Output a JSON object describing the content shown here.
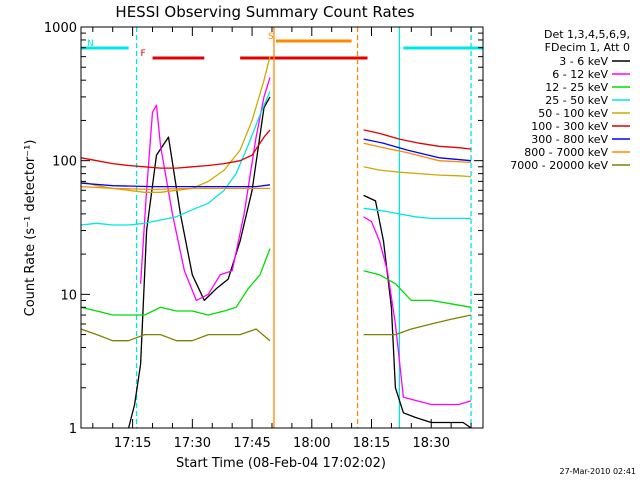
{
  "chart_data": {
    "type": "line",
    "title": "HESSI Observing Summary Count Rates",
    "xlabel": "Start Time (08-Feb-04 17:02:02)",
    "ylabel": "Count Rate (s⁻¹ detector⁻¹)",
    "y_scale": "log",
    "ylim": [
      1,
      1000
    ],
    "xlim": [
      "17:02:02",
      "18:43:00"
    ],
    "x_ticks": [
      "17:15",
      "17:30",
      "17:45",
      "18:00",
      "18:15",
      "18:30"
    ],
    "y_ticks": [
      "1",
      "10",
      "100",
      "1000"
    ],
    "legend_header": [
      "Det 1,3,4,5,6,9,",
      "FDecim 1, Att 0"
    ],
    "footer_date": "27-Mar-2010 02:41",
    "flags": {
      "N": {
        "label": "N",
        "color": "#00e5e5",
        "segments": [
          [
            "17:02:02",
            "17:14:00"
          ],
          [
            "18:23:00",
            "18:43:00"
          ]
        ]
      },
      "F": {
        "label": "F",
        "color": "#e00000",
        "segments": [
          [
            "17:20:00",
            "17:33:00"
          ],
          [
            "17:42:00",
            "18:14:00"
          ]
        ]
      },
      "S": {
        "label": "S",
        "color": "#ff8800",
        "segments": [
          [
            "17:51:00",
            "18:10:00"
          ]
        ]
      }
    },
    "markers": [
      {
        "time": "17:16:00",
        "color": "#00e5e5",
        "style": "dashed"
      },
      {
        "time": "17:50:30",
        "color": "#ff8800",
        "style": "solid"
      },
      {
        "time": "18:11:30",
        "color": "#ff8800",
        "style": "dashed"
      },
      {
        "time": "18:22:00",
        "color": "#00e5e5",
        "style": "solid"
      },
      {
        "time": "18:40:00",
        "color": "#00e5e5",
        "style": "dashed"
      }
    ],
    "series": [
      {
        "name": "3 - 6 keV",
        "color": "#000000",
        "segments": [
          {
            "t": [
              "17:14:00",
              "17:15:30",
              "17:17:00",
              "17:18:30",
              "17:21:00",
              "17:24:00",
              "17:27:00",
              "17:30:00",
              "17:33:00",
              "17:36:00",
              "17:39:00",
              "17:42:00",
              "17:45:00",
              "17:48:00",
              "17:49:30"
            ],
            "v": [
              1,
              1.5,
              3,
              30,
              110,
              150,
              40,
              14,
              9,
              11,
              13,
              25,
              60,
              250,
              300
            ]
          },
          {
            "t": [
              "18:13:00",
              "18:16:00",
              "18:18:00",
              "18:20:00",
              "18:21:00",
              "18:23:00",
              "18:26:00",
              "18:30:00",
              "18:34:00",
              "18:38:00",
              "18:40:00"
            ],
            "v": [
              55,
              50,
              25,
              8,
              2,
              1.3,
              1.2,
              1.1,
              1.1,
              1.1,
              1
            ]
          }
        ]
      },
      {
        "name": "6 - 12 keV",
        "color": "#ff00ff",
        "segments": [
          {
            "t": [
              "17:17:00",
              "17:18:30",
              "17:20:00",
              "17:21:00",
              "17:22:00",
              "17:25:00",
              "17:28:00",
              "17:31:00",
              "17:34:00",
              "17:37:00",
              "17:40:00",
              "17:43:00",
              "17:46:00",
              "17:48:00",
              "17:49:30"
            ],
            "v": [
              12,
              60,
              230,
              260,
              130,
              40,
              15,
              9,
              10,
              14,
              15,
              40,
              150,
              300,
              420
            ]
          },
          {
            "t": [
              "18:13:00",
              "18:15:00",
              "18:17:00",
              "18:19:00",
              "18:21:00",
              "18:23:00",
              "18:30:00",
              "18:37:00",
              "18:40:00"
            ],
            "v": [
              38,
              35,
              25,
              15,
              6,
              1.7,
              1.5,
              1.5,
              1.6
            ]
          }
        ]
      },
      {
        "name": "12 - 25 keV",
        "color": "#00dd00",
        "segments": [
          {
            "t": [
              "17:02:02",
              "17:06:00",
              "17:10:00",
              "17:14:00",
              "17:18:00",
              "17:22:00",
              "17:26:00",
              "17:30:00",
              "17:34:00",
              "17:38:00",
              "17:41:00",
              "17:44:00",
              "17:47:00",
              "17:49:30"
            ],
            "v": [
              8,
              7.5,
              7,
              7,
              7,
              8,
              7.5,
              7.5,
              7,
              7.5,
              8,
              11,
              14,
              22
            ]
          },
          {
            "t": [
              "18:13:00",
              "18:17:00",
              "18:21:00",
              "18:25:00",
              "18:30:00",
              "18:35:00",
              "18:40:00"
            ],
            "v": [
              15,
              14,
              12,
              9,
              9,
              8.5,
              8
            ]
          }
        ]
      },
      {
        "name": "25 - 50 keV",
        "color": "#00e5e5",
        "segments": [
          {
            "t": [
              "17:02:02",
              "17:06:00",
              "17:10:00",
              "17:14:00",
              "17:18:00",
              "17:22:00",
              "17:26:00",
              "17:30:00",
              "17:34:00",
              "17:38:00",
              "17:41:00",
              "17:44:00",
              "17:47:00",
              "17:49:30"
            ],
            "v": [
              33,
              34,
              33,
              33,
              34,
              36,
              38,
              43,
              48,
              60,
              80,
              130,
              220,
              330
            ]
          },
          {
            "t": [
              "18:13:00",
              "18:18:00",
              "18:22:00",
              "18:26:00",
              "18:30:00",
              "18:35:00",
              "18:40:00"
            ],
            "v": [
              44,
              42,
              40,
              38,
              37,
              37,
              37
            ]
          }
        ]
      },
      {
        "name": "50 - 100 keV",
        "color": "#ccaa00",
        "segments": [
          {
            "t": [
              "17:02:02",
              "17:06:00",
              "17:10:00",
              "17:14:00",
              "17:18:00",
              "17:22:00",
              "17:26:00",
              "17:30:00",
              "17:34:00",
              "17:38:00",
              "17:42:00",
              "17:45:00",
              "17:48:00",
              "17:49:30"
            ],
            "v": [
              70,
              65,
              62,
              60,
              58,
              58,
              60,
              62,
              70,
              85,
              120,
              200,
              400,
              600
            ]
          },
          {
            "t": [
              "18:13:00",
              "18:17:00",
              "18:22:00",
              "18:27:00",
              "18:32:00",
              "18:37:00",
              "18:40:00"
            ],
            "v": [
              90,
              85,
              82,
              80,
              78,
              77,
              76
            ]
          }
        ]
      },
      {
        "name": "100 - 300 keV",
        "color": "#e00000",
        "segments": [
          {
            "t": [
              "17:02:02",
              "17:06:00",
              "17:10:00",
              "17:14:00",
              "17:18:00",
              "17:22:00",
              "17:26:00",
              "17:30:00",
              "17:34:00",
              "17:38:00",
              "17:42:00",
              "17:45:00",
              "17:48:00",
              "17:49:30"
            ],
            "v": [
              105,
              100,
              95,
              92,
              90,
              88,
              88,
              90,
              92,
              95,
              100,
              110,
              150,
              170
            ]
          },
          {
            "t": [
              "18:13:00",
              "18:17:00",
              "18:22:00",
              "18:27:00",
              "18:32:00",
              "18:37:00",
              "18:40:00"
            ],
            "v": [
              170,
              160,
              145,
              135,
              128,
              125,
              122
            ]
          }
        ]
      },
      {
        "name": "300 - 800 keV",
        "color": "#0000ff",
        "segments": [
          {
            "t": [
              "17:02:02",
              "17:10:00",
              "17:20:00",
              "17:30:00",
              "17:40:00",
              "17:46:00",
              "17:49:30"
            ],
            "v": [
              68,
              65,
              64,
              64,
              64,
              64,
              66
            ]
          },
          {
            "t": [
              "18:13:00",
              "18:18:00",
              "18:24:00",
              "18:32:00",
              "18:40:00"
            ],
            "v": [
              145,
              135,
              120,
              105,
              100
            ]
          }
        ]
      },
      {
        "name": "800 - 7000 keV",
        "color": "#ff8800",
        "segments": [
          {
            "t": [
              "17:02:02",
              "17:10:00",
              "17:20:00",
              "17:30:00",
              "17:40:00",
              "17:46:00",
              "17:49:30"
            ],
            "v": [
              64,
              62,
              61,
              62,
              62,
              62,
              62
            ]
          },
          {
            "t": [
              "18:13:00",
              "18:18:00",
              "18:24:00",
              "18:32:00",
              "18:40:00"
            ],
            "v": [
              135,
              125,
              115,
              100,
              97
            ]
          }
        ]
      },
      {
        "name": "7000 - 20000 keV",
        "color": "#808000",
        "segments": [
          {
            "t": [
              "17:02:02",
              "17:06:00",
              "17:10:00",
              "17:14:00",
              "17:18:00",
              "17:22:00",
              "17:26:00",
              "17:30:00",
              "17:34:00",
              "17:38:00",
              "17:42:00",
              "17:46:00",
              "17:49:30"
            ],
            "v": [
              5.5,
              5,
              4.5,
              4.5,
              5,
              5,
              4.5,
              4.5,
              5,
              5,
              5,
              5.5,
              4.5
            ]
          },
          {
            "t": [
              "18:13:00",
              "18:17:00",
              "18:21:00",
              "18:25:00",
              "18:30:00",
              "18:35:00",
              "18:40:00"
            ],
            "v": [
              5,
              5,
              5,
              5.5,
              6,
              6.5,
              7
            ]
          }
        ]
      }
    ]
  }
}
